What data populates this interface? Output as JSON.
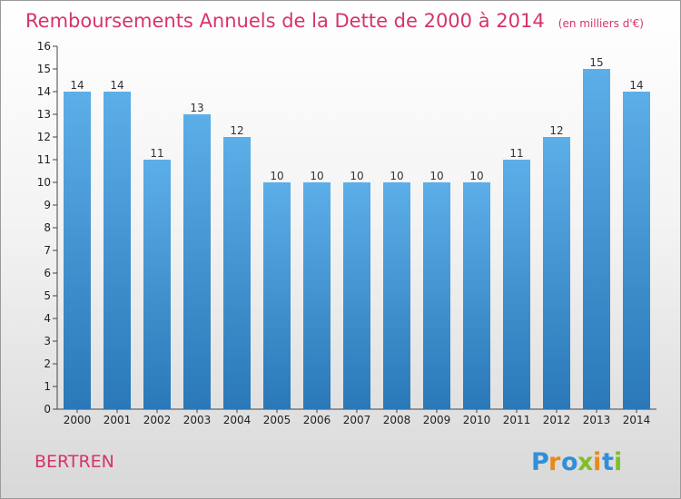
{
  "chart_data": {
    "type": "bar",
    "title": "Remboursements Annuels de la Dette de 2000 à 2014",
    "unit_note": "(en milliers d'€)",
    "categories": [
      "2000",
      "2001",
      "2002",
      "2003",
      "2004",
      "2005",
      "2006",
      "2007",
      "2008",
      "2009",
      "2010",
      "2011",
      "2012",
      "2013",
      "2014"
    ],
    "values": [
      14,
      14,
      11,
      13,
      12,
      10,
      10,
      10,
      10,
      10,
      10,
      11,
      12,
      15,
      14
    ],
    "value_labels": [
      "14",
      "14",
      "11",
      "13",
      "12",
      "10",
      "10",
      "10",
      "10",
      "10",
      "10",
      "11",
      "12",
      "15",
      "14"
    ],
    "ylim": [
      0,
      16
    ],
    "yticks": [
      0,
      1,
      2,
      3,
      4,
      5,
      6,
      7,
      8,
      9,
      10,
      11,
      12,
      13,
      14,
      15,
      16
    ],
    "grid": false,
    "xlabel": "",
    "ylabel": ""
  },
  "commune": "BERTREN",
  "logo": {
    "text": "Proxiti",
    "letters": [
      {
        "ch": "P",
        "color": "#2f8fd8"
      },
      {
        "ch": "r",
        "color": "#e8891c"
      },
      {
        "ch": "o",
        "color": "#2f8fd8"
      },
      {
        "ch": "x",
        "color": "#7fbf2a"
      },
      {
        "ch": "i",
        "color": "#e8891c"
      },
      {
        "ch": "t",
        "color": "#2f8fd8"
      },
      {
        "ch": "i",
        "color": "#7fbf2a"
      }
    ]
  },
  "colors": {
    "bar_top": "#5caee8",
    "bar_bottom": "#2a78b8",
    "title": "#d6336c"
  }
}
